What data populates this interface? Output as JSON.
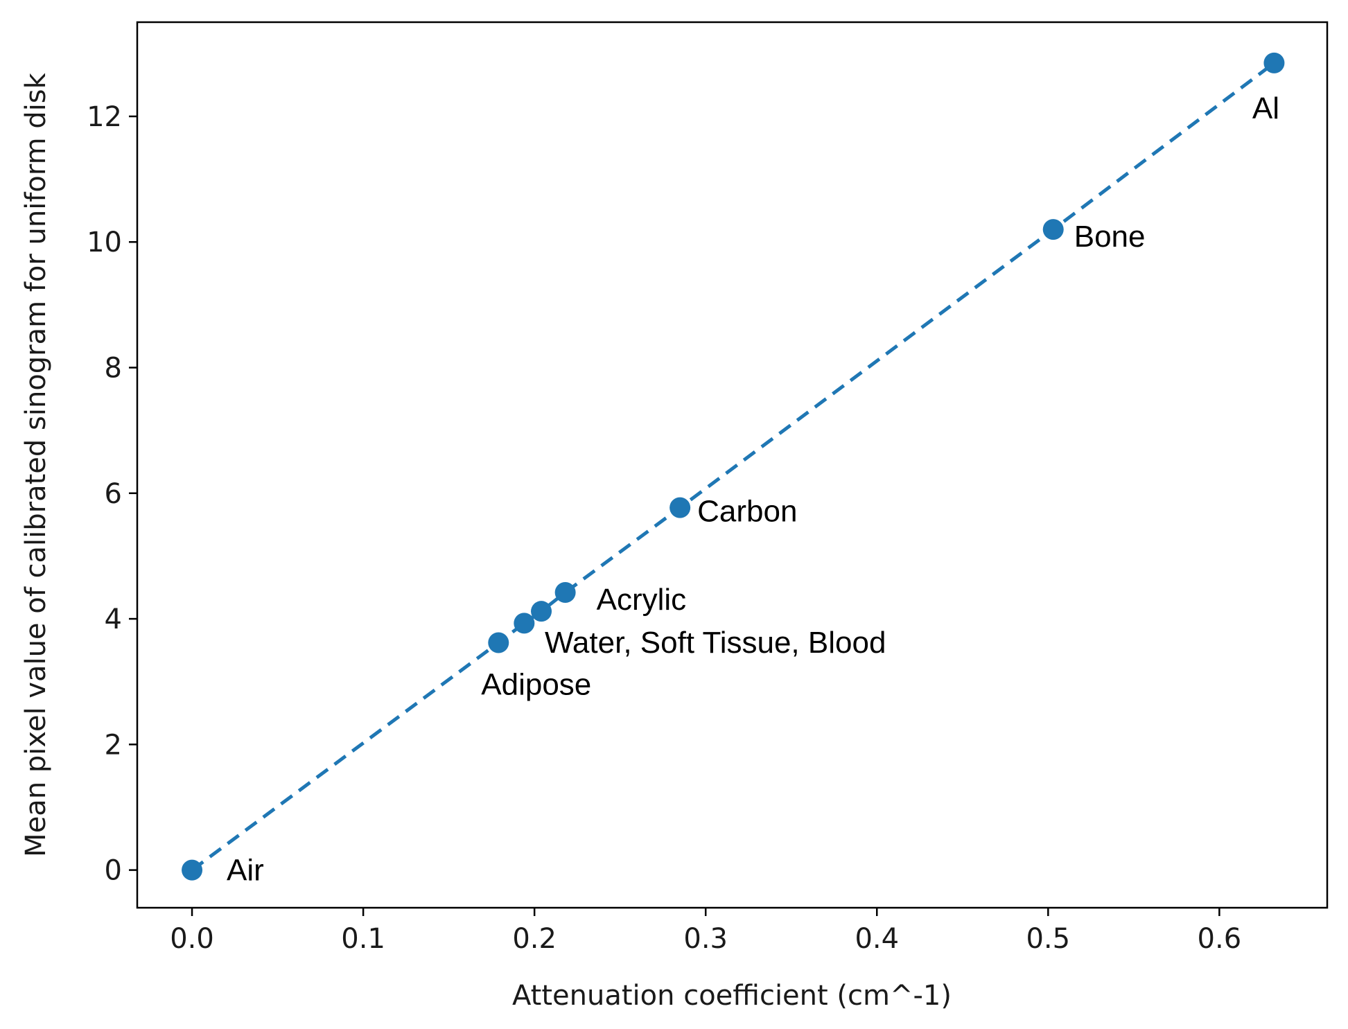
{
  "chart_data": {
    "type": "scatter",
    "title": "",
    "xlabel": "Attenuation coefficient (cm^-1)",
    "ylabel": "Mean pixel value of calibrated sinogram for uniform disk",
    "xlim": [
      -0.032,
      0.663
    ],
    "ylim": [
      -0.6,
      13.5
    ],
    "x_ticks": [
      0.0,
      0.1,
      0.2,
      0.3,
      0.4,
      0.5,
      0.6
    ],
    "x_tick_labels": [
      "0.0",
      "0.1",
      "0.2",
      "0.3",
      "0.4",
      "0.5",
      "0.6"
    ],
    "y_ticks": [
      0,
      2,
      4,
      6,
      8,
      10,
      12
    ],
    "y_tick_labels": [
      "0",
      "2",
      "4",
      "6",
      "8",
      "10",
      "12"
    ],
    "grid": false,
    "color": "#1f77b4",
    "line_style": "dashed",
    "points": [
      {
        "x": 0.0,
        "y": 0.0
      },
      {
        "x": 0.179,
        "y": 3.62
      },
      {
        "x": 0.194,
        "y": 3.93
      },
      {
        "x": 0.204,
        "y": 4.12
      },
      {
        "x": 0.218,
        "y": 4.42
      },
      {
        "x": 0.285,
        "y": 5.77
      },
      {
        "x": 0.503,
        "y": 10.2
      },
      {
        "x": 0.632,
        "y": 12.85
      }
    ],
    "annotations": [
      {
        "text": "Air",
        "x": 0.0,
        "y": 0.0
      },
      {
        "text": "Adipose",
        "x": 0.179,
        "y": 3.62
      },
      {
        "text": "Water, Soft Tissue, Blood",
        "x": 0.204,
        "y": 4.12
      },
      {
        "text": "Acrylic",
        "x": 0.218,
        "y": 4.42
      },
      {
        "text": "Carbon",
        "x": 0.285,
        "y": 5.77
      },
      {
        "text": "Bone",
        "x": 0.503,
        "y": 10.2
      },
      {
        "text": "Al",
        "x": 0.632,
        "y": 12.85
      }
    ]
  }
}
